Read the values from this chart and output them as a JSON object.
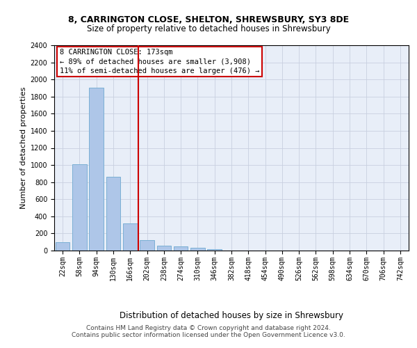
{
  "title_line1": "8, CARRINGTON CLOSE, SHELTON, SHREWSBURY, SY3 8DE",
  "title_line2": "Size of property relative to detached houses in Shrewsbury",
  "xlabel": "Distribution of detached houses by size in Shrewsbury",
  "ylabel": "Number of detached properties",
  "bar_color": "#aec6e8",
  "bar_edge_color": "#7aafd4",
  "background_color": "#e8eef8",
  "categories": [
    "22sqm",
    "58sqm",
    "94sqm",
    "130sqm",
    "166sqm",
    "202sqm",
    "238sqm",
    "274sqm",
    "310sqm",
    "346sqm",
    "382sqm",
    "418sqm",
    "454sqm",
    "490sqm",
    "526sqm",
    "562sqm",
    "598sqm",
    "634sqm",
    "670sqm",
    "706sqm",
    "742sqm"
  ],
  "values": [
    95,
    1010,
    1900,
    860,
    320,
    120,
    55,
    50,
    35,
    20,
    0,
    0,
    0,
    0,
    0,
    0,
    0,
    0,
    0,
    0,
    0
  ],
  "ylim": [
    0,
    2400
  ],
  "yticks": [
    0,
    200,
    400,
    600,
    800,
    1000,
    1200,
    1400,
    1600,
    1800,
    2000,
    2200,
    2400
  ],
  "annotation_title": "8 CARRINGTON CLOSE: 173sqm",
  "annotation_line1": "← 89% of detached houses are smaller (3,908)",
  "annotation_line2": "11% of semi-detached houses are larger (476) →",
  "vline_x_index": 4,
  "footer_line1": "Contains HM Land Registry data © Crown copyright and database right 2024.",
  "footer_line2": "Contains public sector information licensed under the Open Government Licence v3.0.",
  "grid_color": "#c8d0e0",
  "annotation_box_color": "#cc0000",
  "vline_color": "#cc0000",
  "title1_fontsize": 9,
  "title2_fontsize": 8.5,
  "ylabel_fontsize": 8,
  "xlabel_fontsize": 8.5,
  "tick_fontsize": 7,
  "footer_fontsize": 6.5,
  "annot_fontsize": 7.5
}
